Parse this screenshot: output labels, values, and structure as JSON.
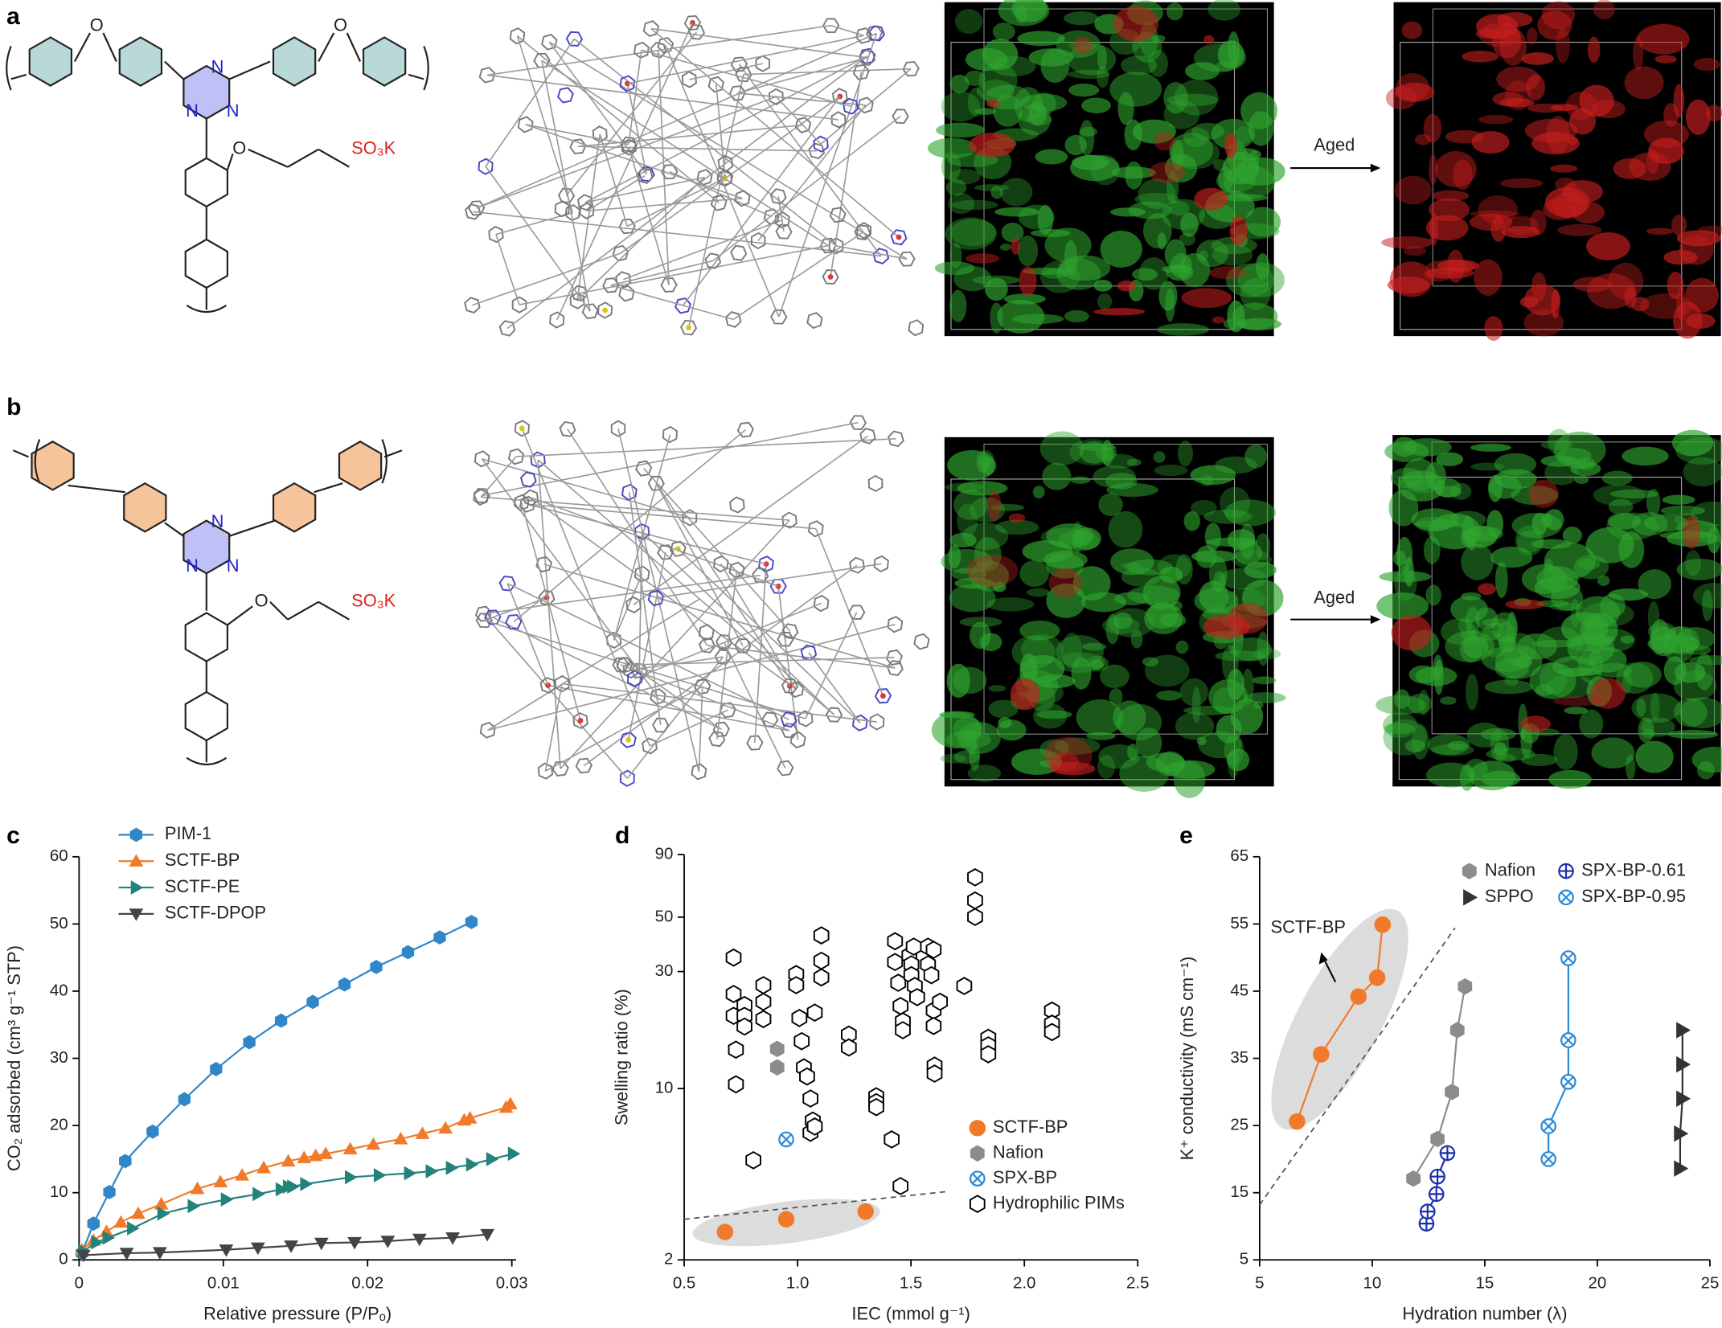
{
  "panel_labels": [
    "a",
    "b",
    "c",
    "d",
    "e"
  ],
  "structures": [
    {
      "atoms": [
        "O",
        "O",
        "N",
        "N",
        "N",
        "O",
        "SO₃K"
      ]
    },
    {
      "atoms": [
        "N",
        "N",
        "N",
        "O",
        "SO₃K"
      ]
    }
  ],
  "arrow_labels": [
    "Aged",
    "Aged"
  ],
  "chart_data": [
    {
      "type": "line",
      "xlabel": "Relative pressure (P/Pₒ)",
      "ylabel": "CO₂ adsorbed (cm³ g⁻¹ STP)",
      "xlim": [
        0,
        0.0303
      ],
      "ylim": [
        0,
        60
      ],
      "xticks": [
        0,
        0.01,
        0.02,
        0.03
      ],
      "yticks": [
        0,
        10,
        20,
        30,
        40,
        50,
        60
      ],
      "legend": "upper left",
      "series": [
        {
          "name": "PIM-1",
          "color": "#2f86c8",
          "marker": "hexagon",
          "x": [
            0.0002,
            0.001,
            0.0021,
            0.0032,
            0.0051,
            0.0073,
            0.0095,
            0.0118,
            0.014,
            0.0162,
            0.0184,
            0.0206,
            0.0228,
            0.025,
            0.0272
          ],
          "values": [
            1,
            5.4,
            10.1,
            14.7,
            19.1,
            23.9,
            28.4,
            32.4,
            35.6,
            38.4,
            41.0,
            43.6,
            45.8,
            48.0,
            50.3
          ]
        },
        {
          "name": "SCTF-BP",
          "color": "#f07a2a",
          "marker": "triangle-up",
          "x": [
            0.0002,
            0.001,
            0.0019,
            0.0029,
            0.0041,
            0.0057,
            0.0082,
            0.0098,
            0.0113,
            0.0128,
            0.0145,
            0.0156,
            0.0164,
            0.0171,
            0.0188,
            0.0204,
            0.0223,
            0.0238,
            0.0254,
            0.0267,
            0.0271,
            0.0296,
            0.0299
          ],
          "values": [
            1.5,
            2.9,
            4.2,
            5.6,
            6.9,
            8.3,
            10.6,
            11.6,
            12.6,
            13.7,
            14.7,
            15.2,
            15.5,
            15.8,
            16.5,
            17.2,
            18.0,
            18.8,
            19.6,
            20.8,
            21.1,
            22.7,
            23.2
          ]
        },
        {
          "name": "SCTF-PE",
          "color": "#23837a",
          "marker": "triangle-right",
          "x": [
            0.0003,
            0.0012,
            0.002,
            0.0037,
            0.0058,
            0.0079,
            0.0102,
            0.0124,
            0.014,
            0.0145,
            0.0148,
            0.0157,
            0.0188,
            0.0208,
            0.0229,
            0.0244,
            0.0258,
            0.0272,
            0.0286,
            0.0301
          ],
          "values": [
            1.3,
            2.6,
            3.3,
            4.7,
            6.9,
            8.0,
            9.0,
            9.8,
            10.5,
            10.9,
            10.9,
            11.3,
            12.3,
            12.6,
            12.9,
            13.2,
            13.7,
            14.2,
            15.0,
            15.8
          ]
        },
        {
          "name": "SCTF-DPOP",
          "color": "#444444",
          "marker": "triangle-down",
          "x": [
            0.0003,
            0.0033,
            0.0056,
            0.0102,
            0.0124,
            0.0147,
            0.0168,
            0.0191,
            0.0214,
            0.0236,
            0.0259,
            0.0283
          ],
          "values": [
            0.7,
            1.0,
            1.1,
            1.5,
            1.8,
            2.1,
            2.5,
            2.6,
            2.8,
            3.1,
            3.3,
            3.8
          ]
        }
      ]
    },
    {
      "type": "scatter",
      "xlabel": "IEC (mmol g⁻¹)",
      "ylabel": "Swelling ratio (%)",
      "log_y": true,
      "xlim": [
        0.5,
        2.5
      ],
      "ylim": [
        2,
        90
      ],
      "xticks": [
        0.5,
        {
          "value": 1,
          "label": "1.0"
        },
        1.5,
        {
          "value": 2,
          "label": "2.0"
        },
        2.5
      ],
      "yticks": [
        2,
        10,
        30,
        50,
        90
      ],
      "legend": "lower right",
      "reference_line": {
        "x": [
          0.5,
          1.66
        ],
        "y": [
          2.93,
          3.8
        ]
      },
      "series": [
        {
          "name": "SCTF-BP",
          "color": "#f07a2a",
          "marker": "circle",
          "x": [
            0.68,
            0.95,
            1.3
          ],
          "values": [
            2.6,
            2.93,
            3.15
          ]
        },
        {
          "name": "Nafion",
          "color": "#8c8c8c",
          "marker": "hexagon",
          "x": [
            0.91,
            0.91
          ],
          "values": [
            14.5,
            12.2
          ]
        },
        {
          "name": "SPX-BP",
          "color": "#2a8ad8",
          "marker": "box-x",
          "x": [
            0.95
          ],
          "values": [
            6.2
          ]
        },
        {
          "name": "Hydrophilic PIMs",
          "color": "#000000",
          "marker": "open-hexagon",
          "x": [
            0.718,
            0.718,
            0.718,
            0.728,
            0.728,
            0.766,
            0.766,
            0.766,
            0.805,
            0.849,
            0.849,
            0.849,
            0.994,
            0.994,
            1.008,
            1.018,
            1.028,
            1.042,
            1.057,
            1.067,
            1.057,
            1.076,
            1.105,
            1.105,
            1.105,
            1.076,
            1.226,
            1.226,
            1.347,
            1.347,
            1.347,
            1.415,
            1.454,
            1.43,
            1.43,
            1.444,
            1.454,
            1.464,
            1.464,
            1.493,
            1.502,
            1.502,
            1.512,
            1.517,
            1.527,
            1.575,
            1.575,
            1.59,
            1.6,
            1.6,
            1.604,
            1.604,
            1.628,
            1.6,
            1.735,
            1.783,
            1.783,
            1.783,
            1.841,
            1.841,
            1.841,
            2.122,
            2.122,
            2.122
          ],
          "values": [
            34.2,
            24.3,
            19.8,
            14.4,
            10.4,
            21.9,
            19.8,
            17.9,
            5.1,
            26.4,
            22.6,
            19.2,
            29.3,
            26.4,
            19.4,
            15.6,
            12.2,
            11.2,
            9.1,
            7.4,
            6.6,
            7.0,
            42.1,
            33.2,
            28.4,
            20.4,
            16.6,
            14.7,
            9.3,
            8.8,
            8.4,
            6.2,
            4.0,
            39.9,
            32.8,
            27.0,
            21.7,
            18.8,
            17.3,
            34.9,
            32.1,
            29.0,
            37.9,
            26.2,
            23.6,
            37.9,
            32.1,
            29.0,
            20.8,
            18.0,
            12.4,
            11.5,
            22.6,
            36.8,
            26.2,
            72.7,
            58.5,
            50.1,
            16.1,
            15.0,
            13.8,
            20.8,
            18.4,
            17.0
          ]
        }
      ]
    },
    {
      "type": "line",
      "xlabel": "Hydration number (λ)",
      "ylabel": "K⁺ conductivity (mS cm⁻¹)",
      "xlim": [
        5,
        25
      ],
      "ylim": [
        5,
        65
      ],
      "xticks": [
        5,
        10,
        15,
        20,
        25
      ],
      "yticks": [
        5,
        15,
        25,
        35,
        45,
        55,
        65
      ],
      "legend": "upper right",
      "legend_columns": 2,
      "reference_line": {
        "x": [
          5,
          13.68
        ],
        "y": [
          13.2,
          54.4
        ]
      },
      "series": [
        {
          "name": "SCTF-BP",
          "color": "#f07a2a",
          "marker": "circle",
          "in_legend": false,
          "x": [
            6.66,
            7.73,
            9.39,
            10.22,
            10.46
          ],
          "values": [
            25.6,
            35.6,
            44.2,
            47.0,
            54.9
          ]
        },
        {
          "name": "Nafion",
          "color": "#8c8c8c",
          "marker": "hexagon",
          "x": [
            11.83,
            12.9,
            13.54,
            13.78,
            14.12
          ],
          "values": [
            17.1,
            23.0,
            30.0,
            39.2,
            45.7
          ]
        },
        {
          "name": "SPPO",
          "color": "#333333",
          "marker": "triangle-right",
          "x": [
            23.68,
            23.68,
            23.78,
            23.78,
            23.78
          ],
          "values": [
            18.6,
            23.8,
            29.0,
            34.1,
            39.2
          ]
        },
        {
          "name": "SPX-BP-0.61",
          "color": "#1a2fb0",
          "marker": "crossed-circle",
          "x": [
            12.41,
            12.46,
            12.85,
            12.9,
            13.34
          ],
          "values": [
            10.4,
            12.2,
            14.8,
            17.4,
            20.9
          ]
        },
        {
          "name": "SPX-BP-0.95",
          "color": "#2a8ad8",
          "marker": "box-x",
          "x": [
            17.83,
            17.83,
            18.71,
            18.71,
            18.71
          ],
          "values": [
            20.0,
            24.9,
            31.5,
            37.7,
            49.9
          ]
        }
      ]
    }
  ]
}
